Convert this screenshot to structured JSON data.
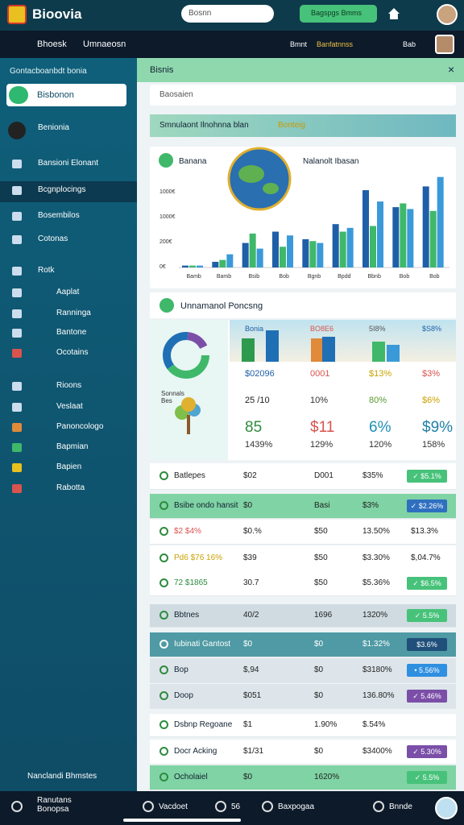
{
  "topbar": {
    "logo": "Bioovia",
    "search": "Bosnn",
    "button": "Bagspgs Bmms"
  },
  "navbar": {
    "links": [
      "Bhoesk",
      "Umnaeosn"
    ],
    "right": [
      "Bmnt",
      "Banfatnnss",
      "Bab"
    ]
  },
  "sidebar": {
    "heading": "Gontacboanbdt bonia",
    "selected": "Bisbonon",
    "items": [
      "Benionia",
      "Bansioni Elonant",
      "Bcgnplocings",
      "Bosembilos",
      "Cotonas",
      "Rotk",
      "Aaplat",
      "Ranninga",
      "Bantone",
      "Ocotains",
      "Rioons",
      "Veslaat",
      "Panoncologo",
      "Bapmian",
      "Bapien",
      "Rabotta"
    ],
    "footer": "Nanclandi Bhmstes"
  },
  "main": {
    "header": "Bisnis",
    "search": "Baosaien",
    "banner": "Smnulaont Ilnohnna blan",
    "banner_tag": "Bonteig",
    "section": "Unnamanol Poncsng",
    "donut_caption": "Sonnals Bes"
  },
  "chart": {
    "type": "bar",
    "title": "Banana",
    "subtitle": "Nalanolt Ibasan",
    "axis_labels": [
      "1000€",
      "1000€",
      "200€",
      "0€"
    ],
    "categories": [
      "Bamb",
      "Bamb",
      "Bsib",
      "Bob",
      "Bgnb",
      "Bpdd",
      "Bbnb",
      "Bob",
      "Bob"
    ],
    "ylim": [
      0,
      100
    ],
    "series": [
      {
        "color": "#1f5fa8",
        "values": [
          2,
          6,
          26,
          38,
          30,
          46,
          82,
          64,
          86
        ]
      },
      {
        "color": "#3fb86a",
        "values": [
          2,
          8,
          36,
          22,
          28,
          38,
          44,
          68,
          60
        ]
      },
      {
        "color": "#3a9ad9",
        "values": [
          2,
          14,
          20,
          34,
          26,
          42,
          70,
          62,
          96
        ]
      }
    ]
  },
  "stats": {
    "header": [
      "Bonia",
      "BO8E6",
      "5I8%",
      "$S8%"
    ],
    "rows": [
      [
        "$02096",
        "0001",
        "$13%",
        "$3%"
      ],
      [
        "25 /10",
        "10%",
        "80%",
        "$6%"
      ],
      [
        "85",
        "$11",
        "6%",
        "$9%"
      ],
      [
        "1439%",
        "129%",
        "120%",
        "158%"
      ]
    ]
  },
  "table": {
    "rows": [
      {
        "label": "Batlepes",
        "cells": [
          "$02",
          "D001",
          "$35%"
        ],
        "badge": "✓ $5.1%"
      },
      {
        "label": "Bsibe ondo hansit",
        "cells": [
          "$0",
          "Basi",
          "$3%"
        ],
        "badge": "✓ $2.26%"
      },
      {
        "label": "$2 $4%",
        "cells": [
          "$0.%",
          "$50",
          "13.50%",
          "$13.3%"
        ]
      },
      {
        "label": "Pd6 $76 16%",
        "cells": [
          "$39",
          "$50",
          "$3.30%",
          "$,04.7%"
        ]
      },
      {
        "label": "72 $1865",
        "cells": [
          "30.7",
          "$50",
          "$5.36%"
        ],
        "badge": "✓ $6.5%"
      },
      {
        "label": "Bbtnes",
        "cells": [
          "40/2",
          "1696",
          "1320%"
        ],
        "badge": "✓ 5.5%"
      },
      {
        "label": "Iubinati Gantost",
        "cells": [
          "$0",
          "$0",
          "$1.32%"
        ],
        "badge": "$3.6%"
      },
      {
        "label": "Bop",
        "cells": [
          "$,94",
          "$0",
          "$3180%"
        ],
        "badge": "• 5.56%"
      },
      {
        "label": "Doop",
        "cells": [
          "$051",
          "$0",
          "136.80%"
        ],
        "badge": "✓ 5.46%"
      },
      {
        "label": "Dsbnp Regoane",
        "cells": [
          "$1",
          "1.90%",
          "$.54%"
        ]
      },
      {
        "label": "Docr Acking",
        "cells": [
          "$1/31",
          "$0",
          "$3400%"
        ],
        "badge": "✓ 5.30%"
      },
      {
        "label": "Ocholaiel",
        "cells": [
          "$0",
          "1620%"
        ],
        "badge": "✓ 5.5%"
      }
    ]
  },
  "bottombar": [
    "Ranutans Bonopsa",
    "Vacdoet",
    "56",
    "Baxpogaa",
    "Bnnde"
  ]
}
